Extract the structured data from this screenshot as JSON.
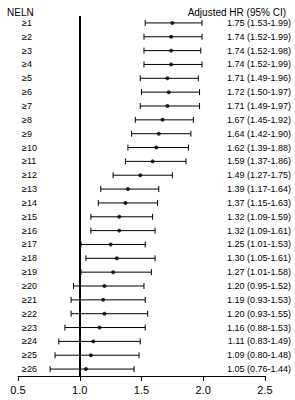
{
  "chart_data": {
    "type": "forest",
    "orientation": "horizontal",
    "row_header": "NELN",
    "value_header": "Adjusted HR (95% CI)",
    "categories": [
      "≥1",
      "≥2",
      "≥3",
      "≥4",
      "≥5",
      "≥6",
      "≥7",
      "≥8",
      "≥9",
      "≥10",
      "≥11",
      "≥12",
      "≥13",
      "≥14",
      "≥15",
      "≥16",
      "≥17",
      "≥18",
      "≥19",
      "≥20",
      "≥21",
      "≥22",
      "≥23",
      "≥24",
      "≥25",
      "≥26"
    ],
    "values": [
      1.75,
      1.74,
      1.74,
      1.74,
      1.71,
      1.72,
      1.71,
      1.67,
      1.64,
      1.62,
      1.59,
      1.49,
      1.39,
      1.37,
      1.32,
      1.32,
      1.25,
      1.3,
      1.27,
      1.2,
      1.19,
      1.2,
      1.16,
      1.11,
      1.09,
      1.05
    ],
    "ci_low": [
      1.53,
      1.52,
      1.52,
      1.52,
      1.49,
      1.5,
      1.49,
      1.45,
      1.42,
      1.39,
      1.37,
      1.27,
      1.17,
      1.15,
      1.09,
      1.09,
      1.01,
      1.05,
      1.01,
      0.95,
      0.93,
      0.93,
      0.88,
      0.83,
      0.8,
      0.76
    ],
    "ci_high": [
      1.99,
      1.99,
      1.98,
      1.99,
      1.96,
      1.97,
      1.97,
      1.92,
      1.9,
      1.88,
      1.86,
      1.75,
      1.64,
      1.63,
      1.59,
      1.61,
      1.53,
      1.61,
      1.58,
      1.52,
      1.53,
      1.55,
      1.53,
      1.49,
      1.48,
      1.44
    ],
    "value_labels": [
      "1.75 (1.53-1.99)",
      "1.74 (1.52-1.99)",
      "1.74 (1.52-1.98)",
      "1.74 (1.52-1.99)",
      "1.71 (1.49-1.96)",
      "1.72 (1.50-1.97)",
      "1.71 (1.49-1.97)",
      "1.67 (1.45-1.92)",
      "1.64 (1.42-1.90)",
      "1.62 (1.39-1.88)",
      "1.59 (1.37-1.86)",
      "1.49 (1.27-1.75)",
      "1.39 (1.17-1.64)",
      "1.37 (1.15-1.63)",
      "1.32 (1.09-1.59)",
      "1.32 (1.09-1.61)",
      "1.25 (1.01-1.53)",
      "1.30 (1.05-1.61)",
      "1.27 (1.01-1.58)",
      "1.20 (0.95-1.52)",
      "1.19 (0.93-1.53)",
      "1.20 (0.93-1.55)",
      "1.16 (0.88-1.53)",
      "1.11 (0.83-1.49)",
      "1.09 (0.80-1.48)",
      "1.05 (0.76-1.44)"
    ],
    "reference": 1,
    "xlim": [
      0.5,
      2.5
    ],
    "xticks": [
      0.5,
      {
        "value": 1,
        "label": "1.0"
      },
      1.5,
      {
        "value": 2,
        "label": "2.0"
      },
      2.5
    ],
    "color": "#000000",
    "marker": "circle",
    "grid": false
  }
}
